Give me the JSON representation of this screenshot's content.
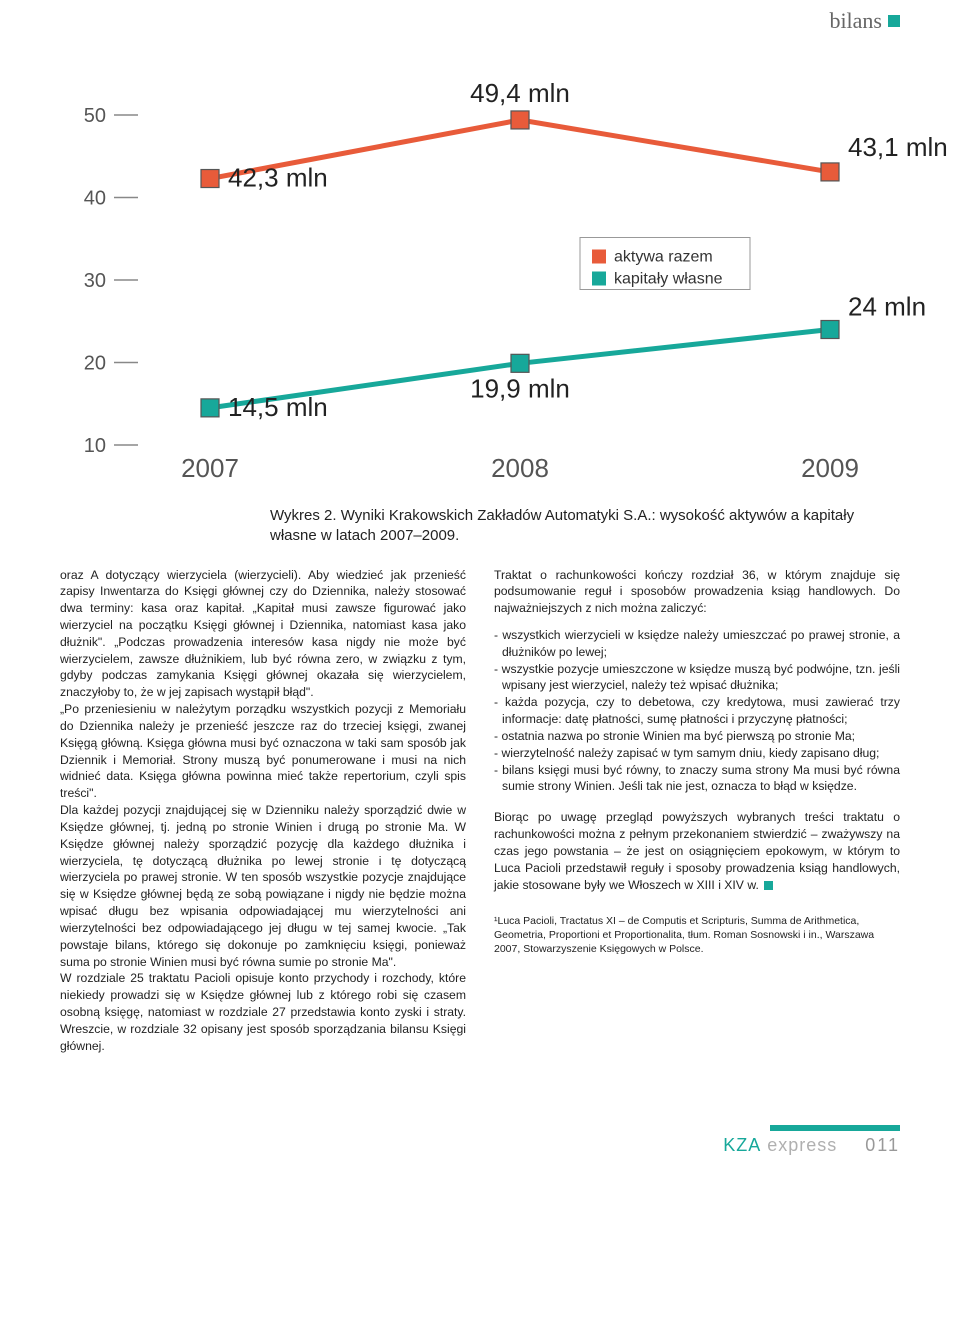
{
  "header": {
    "tag": "bilans",
    "dot_color": "#17a89a"
  },
  "chart": {
    "type": "line",
    "ylim": [
      10,
      50
    ],
    "ytick_step": 10,
    "yticks": [
      10,
      20,
      30,
      40,
      50
    ],
    "years": [
      "2007",
      "2008",
      "2009"
    ],
    "series": [
      {
        "name": "aktywa razem",
        "color": "#e85b3a",
        "values": [
          42.3,
          49.4,
          43.1
        ],
        "labels": [
          "42,3 mln",
          "49,4 mln",
          "43,1 mln"
        ]
      },
      {
        "name": "kapitały własne",
        "color": "#17a89a",
        "values": [
          14.5,
          19.9,
          24
        ],
        "labels": [
          "14,5 mln",
          "19,9 mln",
          "24 mln"
        ]
      }
    ],
    "legend": [
      "aktywa razem",
      "kapitały własne"
    ],
    "line_width": 5,
    "marker_size": 18,
    "marker_stroke": "#555",
    "axis_color": "#888",
    "tick_color": "#888",
    "background": "#ffffff"
  },
  "caption": "Wykres 2. Wyniki Krakowskich Zakładów Automatyki S.A.: wysokość aktywów a kapitały własne w latach 2007–2009.",
  "left_col": "oraz A dotyczący wierzyciela (wierzycieli). Aby wiedzieć jak przenieść zapisy Inwentarza do Księgi głównej czy do Dziennika, należy stosować dwa terminy: kasa oraz kapitał. „Kapitał musi zawsze figurować jako wierzyciel na początku Księgi głównej i Dziennika, natomiast kasa jako dłużnik\". „Podczas prowadzenia interesów kasa nigdy nie może być wierzycielem, zawsze dłużnikiem, lub być równa zero, w związku z tym, gdyby podczas zamykania Księgi głównej okazała się wierzycielem, znaczyłoby to, że w jej zapisach wystąpił błąd\".\n„Po przeniesieniu w należytym porządku wszystkich pozycji z Memoriału do Dziennika należy je przenieść jeszcze raz do trzeciej księgi, zwanej Księgą główną. Księga główna musi być oznaczona w taki sam sposób jak Dziennik i Memoriał. Strony muszą być ponumerowane i musi na nich widnieć data. Księga główna powinna mieć także repertorium, czyli spis treści\".\nDla każdej pozycji znajdującej się w Dzienniku należy sporządzić dwie w Księdze głównej, tj. jedną po stronie Winien i drugą po stronie Ma. W Księdze głównej należy sporządzić pozycję dla każdego dłużnika i wierzyciela, tę dotyczącą dłużnika po lewej stronie i tę dotyczącą wierzyciela po prawej stronie. W ten sposób wszystkie pozycje znajdujące się w Księdze głównej będą ze sobą powiązane i nigdy nie będzie można wpisać długu bez wpisania odpowiadającej mu wierzytelności ani wierzytelności bez odpowiadającego jej długu w tej samej kwocie. „Tak powstaje bilans, którego się dokonuje po zamknięciu księgi, ponieważ suma po stronie Winien musi być równa sumie po stronie Ma\".\nW rozdziale 25 traktatu Pacioli opisuje konto przychody i rozchody, które niekiedy prowadzi się w Księdze głównej lub z którego robi się czasem osobną księgę, natomiast w rozdziale 27 przedstawia konto zyski i straty. Wreszcie, w rozdziale 32 opisany jest sposób sporządzania bilansu Księgi głównej.",
  "right_intro": "Traktat o rachunkowości kończy rozdział 36, w którym znajduje się podsumowanie reguł i sposobów prowadzenia ksiąg handlowych. Do najważniejszych z nich można zaliczyć:",
  "rules": [
    "- wszystkich wierzycieli w księdze należy umieszczać po prawej stronie, a dłużników po lewej;",
    "- wszystkie pozycje umieszczone w księdze muszą być podwójne, tzn. jeśli wpisany jest wierzyciel, należy też wpisać dłużnika;",
    "- każda pozycja, czy to debetowa, czy kredytowa, musi zawierać trzy informacje: datę płatności, sumę płatności i przyczynę płatności;",
    "- ostatnia nazwa po stronie Winien ma być pierwszą po stronie Ma;",
    "- wierzytelność należy zapisać w tym samym dniu, kiedy zapisano dług;",
    "- bilans księgi musi być równy, to znaczy suma strony Ma musi być równa sumie strony Winien. Jeśli tak nie jest, oznacza to błąd w księdze."
  ],
  "right_conclusion": "Biorąc po uwagę przegląd powyższych wybranych treści traktatu o rachunkowości można z pełnym przekonaniem stwierdzić – zważywszy na czas jego powstania – że jest on osiągnięciem epokowym, w którym to Luca Pacioli przedstawił reguły i sposoby prowadzenia ksiąg handlowych, jakie stosowane były we Włoszech w XIII i XIV w.",
  "footnote": "¹Luca Pacioli, Tractatus XI – de Computis et Scripturis, Summa de Arithmetica, Geometria, Proportioni et Proportionalita, tłum. Roman Sosnowski i in., Warszawa 2007, Stowarzyszenie Księgowych w Polsce.",
  "footer": {
    "brand_a": "KZA",
    "brand_b": "express",
    "page": "011",
    "bar_color": "#17a89a"
  }
}
